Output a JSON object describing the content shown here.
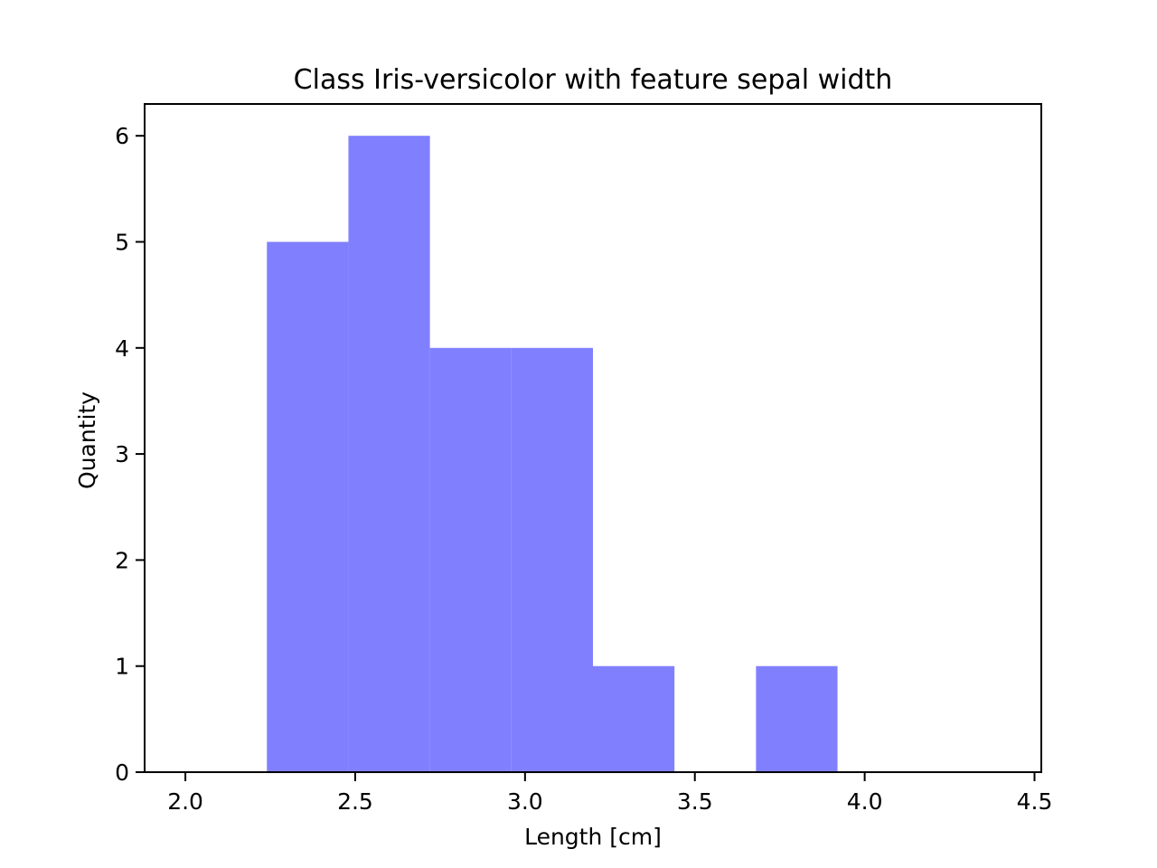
{
  "chart_data": {
    "type": "bar",
    "subtype": "histogram",
    "title": "Class Iris-versicolor with feature sepal width",
    "xlabel": "Length [cm]",
    "ylabel": "Quantity",
    "xlim": [
      1.88,
      4.52
    ],
    "ylim": [
      0,
      6.3
    ],
    "x_ticks": [
      2.0,
      2.5,
      3.0,
      3.5,
      4.0,
      4.5
    ],
    "x_tick_labels": [
      "2.0",
      "2.5",
      "3.0",
      "3.5",
      "4.0",
      "4.5"
    ],
    "y_ticks": [
      0,
      1,
      2,
      3,
      4,
      5,
      6
    ],
    "y_tick_labels": [
      "0",
      "1",
      "2",
      "3",
      "4",
      "5",
      "6"
    ],
    "bins": [
      {
        "x0": 2.24,
        "x1": 2.48,
        "value": 5
      },
      {
        "x0": 2.48,
        "x1": 2.72,
        "value": 6
      },
      {
        "x0": 2.72,
        "x1": 2.96,
        "value": 4
      },
      {
        "x0": 2.96,
        "x1": 3.2,
        "value": 4
      },
      {
        "x0": 3.2,
        "x1": 3.44,
        "value": 1
      },
      {
        "x0": 3.44,
        "x1": 3.68,
        "value": 0
      },
      {
        "x0": 3.68,
        "x1": 3.92,
        "value": 1
      },
      {
        "x0": 3.92,
        "x1": 4.16,
        "value": 0
      },
      {
        "x0": 4.16,
        "x1": 4.4,
        "value": 0
      }
    ],
    "grid": false,
    "bar_color": "#8080ff"
  }
}
